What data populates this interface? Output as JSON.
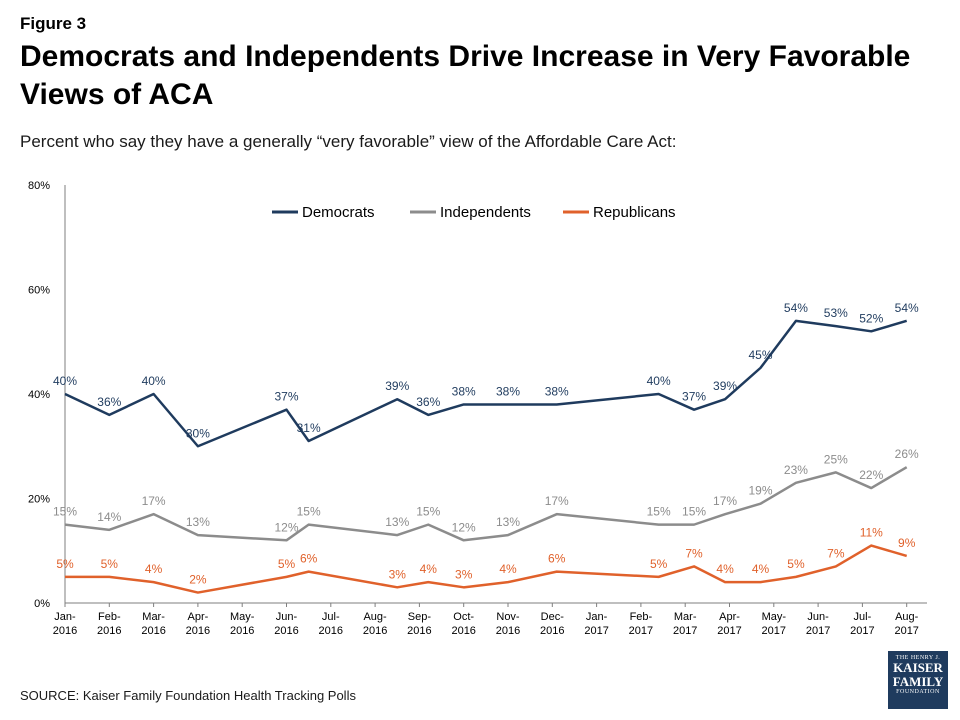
{
  "figure_label": "Figure 3",
  "title": "Democrats and Independents Drive Increase in Very Favorable Views of ACA",
  "subtitle": "Percent who say they have a generally “very favorable” view of the Affordable Care Act:",
  "source": "SOURCE: Kaiser Family Foundation Health Tracking Polls",
  "logo": {
    "line1": "THE HENRY J.",
    "line2": "KAISER",
    "line3": "FAMILY",
    "line4": "FOUNDATION"
  },
  "colors": {
    "democrats": "#1f3b5e",
    "independents": "#8c8c8c",
    "republicans": "#e0612b",
    "axis": "#7f7f7f",
    "logo": "#1f3b5e"
  },
  "chart_data": {
    "type": "line",
    "x": [
      "Jan-2016",
      "Feb-2016",
      "Mar-2016",
      "Apr-2016",
      "Jun-2016",
      "Jul-2016",
      "Sep-2016",
      "Oct-2016",
      "Nov-2016",
      "Dec-2016",
      "Feb-2017",
      "Mar-2017",
      "Apr-2017",
      "May-2017",
      "Jun-2017",
      "Jul-2017",
      "Aug-2017"
    ],
    "tick_labels": [
      [
        "Jan-",
        "2016"
      ],
      [
        "Feb-",
        "2016"
      ],
      [
        "Mar-",
        "2016"
      ],
      [
        "Apr-",
        "2016"
      ],
      [
        "May-",
        "2016"
      ],
      [
        "Jun-",
        "2016"
      ],
      [
        "Jul-",
        "2016"
      ],
      [
        "Aug-",
        "2016"
      ],
      [
        "Sep-",
        "2016"
      ],
      [
        "Oct-",
        "2016"
      ],
      [
        "Nov-",
        "2016"
      ],
      [
        "Dec-",
        "2016"
      ],
      [
        "Jan-",
        "2017"
      ],
      [
        "Feb-",
        "2017"
      ],
      [
        "Mar-",
        "2017"
      ],
      [
        "Apr-",
        "2017"
      ],
      [
        "May-",
        "2017"
      ],
      [
        "Jun-",
        "2017"
      ],
      [
        "Jul-",
        "2017"
      ],
      [
        "Aug-",
        "2017"
      ]
    ],
    "series": [
      {
        "name": "Democrats",
        "values": [
          40,
          36,
          40,
          30,
          37,
          31,
          39,
          36,
          38,
          38,
          38,
          40,
          37,
          39,
          45,
          54,
          53,
          52,
          54
        ],
        "x": [
          "Jan-2016",
          "Feb-2016",
          "Mar-2016",
          "Apr-2016",
          "Jun-2016",
          "Jul-2016",
          "Sep-2016",
          "Oct-2016",
          "Nov-2016",
          "Dec-2016",
          "Dec-2016b",
          "Feb-2017",
          "Mar-2017",
          "Apr-2017",
          "May-2017",
          "Jun-2017",
          "Jul-2017",
          "Jul-2017b",
          "Aug-2017"
        ]
      },
      {
        "name": "Independents",
        "values": [
          15,
          14,
          17,
          13,
          12,
          15,
          13,
          15,
          12,
          13,
          17,
          15,
          15,
          17,
          19,
          23,
          25,
          22,
          26
        ],
        "x": [
          "Jan-2016",
          "Feb-2016",
          "Mar-2016",
          "Apr-2016",
          "Jun-2016",
          "Jul-2016",
          "Sep-2016",
          "Oct-2016",
          "Nov-2016",
          "Dec-2016",
          "Dec-2016b",
          "Feb-2017",
          "Mar-2017",
          "Apr-2017",
          "May-2017",
          "Jun-2017",
          "Jul-2017",
          "Jul-2017b",
          "Aug-2017"
        ]
      },
      {
        "name": "Republicans",
        "values": [
          5,
          5,
          4,
          2,
          5,
          6,
          3,
          4,
          3,
          4,
          6,
          5,
          7,
          4,
          4,
          5,
          7,
          11,
          9
        ],
        "x": [
          "Jan-2016",
          "Feb-2016",
          "Mar-2016",
          "Apr-2016",
          "Jun-2016",
          "Jul-2016",
          "Sep-2016",
          "Oct-2016",
          "Nov-2016",
          "Dec-2016",
          "Dec-2016b",
          "Feb-2017",
          "Mar-2017",
          "Apr-2017",
          "May-2017",
          "Jun-2017",
          "Jul-2017",
          "Jul-2017b",
          "Aug-2017"
        ]
      }
    ],
    "point_positions_months": [
      0,
      1,
      2,
      3,
      5,
      5.5,
      7.5,
      8.2,
      9.0,
      10.0,
      11.1,
      13.4,
      14.2,
      14.9,
      15.7,
      16.5,
      17.4,
      18.2,
      19.0
    ],
    "y_ticks": [
      "0%",
      "20%",
      "40%",
      "60%",
      "80%"
    ],
    "ylim": [
      0,
      80
    ],
    "grid": false,
    "legend": "top-center"
  }
}
